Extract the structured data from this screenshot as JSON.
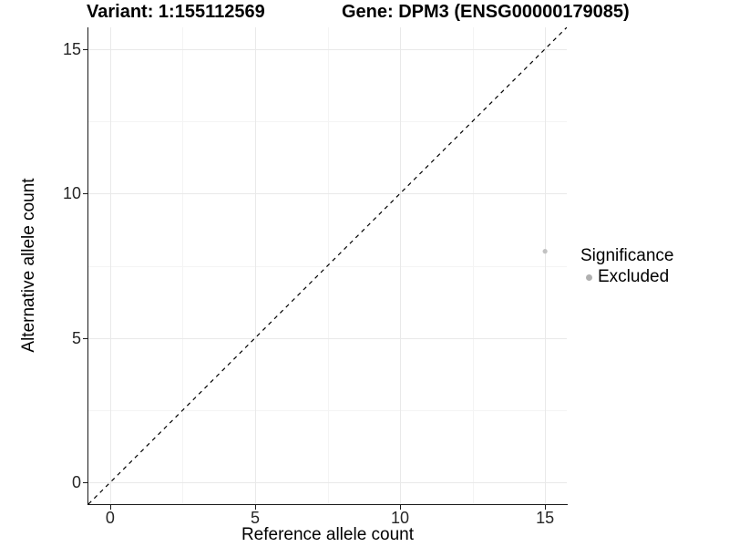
{
  "chart_data": {
    "type": "scatter",
    "title_left": "Variant: 1:155112569",
    "title_right": "Gene: DPM3 (ENSG00000179085)",
    "xlabel": "Reference allele count",
    "ylabel": "Alternative allele count",
    "xlim": [
      -0.75,
      15.75
    ],
    "ylim": [
      -0.75,
      15.75
    ],
    "x_ticks": [
      0,
      5,
      10,
      15
    ],
    "y_ticks": [
      0,
      5,
      10,
      15
    ],
    "x_minor_gridlines": [
      2.5,
      7.5,
      12.5
    ],
    "y_minor_gridlines": [
      2.5,
      7.5,
      12.5
    ],
    "grid": true,
    "reference_line": {
      "kind": "identity",
      "style": "dashed",
      "color": "#000000"
    },
    "series": [
      {
        "name": "Excluded",
        "color": "#c2c2c2",
        "points": [
          {
            "x": 15,
            "y": 8
          }
        ]
      }
    ],
    "legend": {
      "position": "right",
      "title": "Significance",
      "entries": [
        {
          "label": "Excluded",
          "color": "#b0b0b0"
        }
      ]
    },
    "colors": {
      "axis_line": "#1a1a1a",
      "tick_label": "#262626",
      "grid_major": "#e9e9e9",
      "grid_minor": "#f4f4f4",
      "point": "#c2c2c2"
    }
  }
}
